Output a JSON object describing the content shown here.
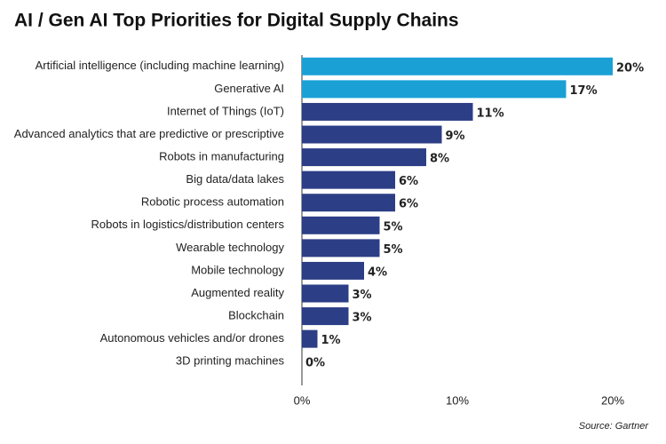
{
  "chart_data": {
    "type": "bar",
    "orientation": "horizontal",
    "title": "AI / Gen AI Top Priorities for Digital Supply Chains",
    "source": "Source: Gartner",
    "categories": [
      "Artificial intelligence (including machine learning)",
      "Generative AI",
      "Internet of Things (IoT)",
      "Advanced analytics that are predictive or prescriptive",
      "Robots in manufacturing",
      "Big data/data lakes",
      "Robotic process automation",
      "Robots in logistics/distribution centers",
      "Wearable technology",
      "Mobile technology",
      "Augmented reality",
      "Blockchain",
      "Autonomous vehicles and/or drones",
      "3D printing machines"
    ],
    "values": [
      20,
      17,
      11,
      9,
      8,
      6,
      6,
      5,
      5,
      4,
      3,
      3,
      1,
      0
    ],
    "value_labels": [
      "20%",
      "17%",
      "11%",
      "9%",
      "8%",
      "6%",
      "6%",
      "5%",
      "5%",
      "4%",
      "3%",
      "3%",
      "1%",
      "0%"
    ],
    "colors": [
      "#1ba0d6",
      "#1ba0d6",
      "#2c3e86",
      "#2c3e86",
      "#2c3e86",
      "#2c3e86",
      "#2c3e86",
      "#2c3e86",
      "#2c3e86",
      "#2c3e86",
      "#2c3e86",
      "#2c3e86",
      "#2c3e86",
      "#2c3e86"
    ],
    "xlim": [
      0,
      20
    ],
    "xticks": [
      {
        "value": 0,
        "label": "0%"
      },
      {
        "value": 10,
        "label": "10%"
      },
      {
        "value": 20,
        "label": "20%"
      }
    ],
    "grid": false
  }
}
